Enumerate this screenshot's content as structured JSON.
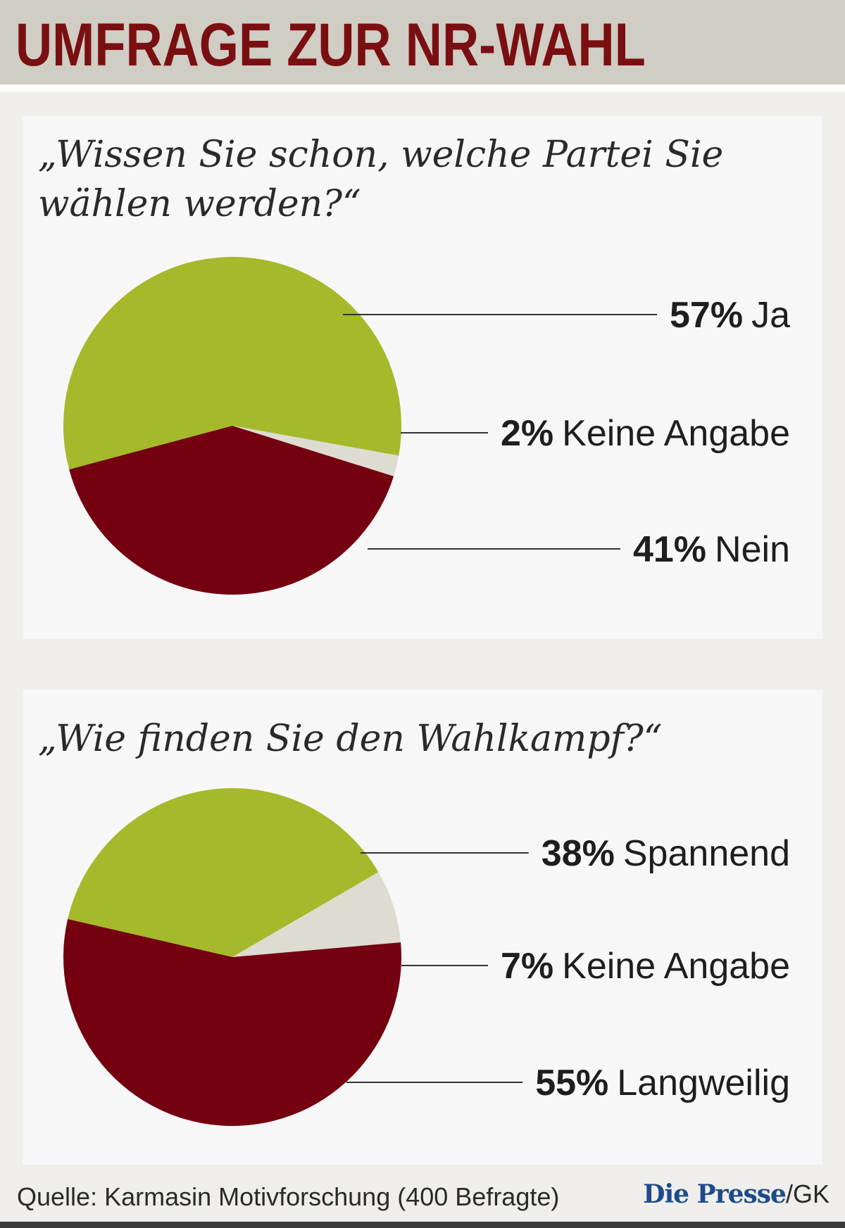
{
  "header": {
    "title": "UMFRAGE ZUR NR-WAHL"
  },
  "colors": {
    "green": "#a5b92b",
    "red": "#740010",
    "beige": "#dedcd1",
    "leader": "#333333"
  },
  "chart_data": [
    {
      "type": "pie",
      "title": "„Wissen Sie schon, welche Partei Sie wählen werden?“",
      "title_lines": [
        "„Wissen Sie schon, welche Partei Sie",
        "wählen werden?“"
      ],
      "unit": "%",
      "slices": [
        {
          "label": "Ja",
          "value": 57,
          "pct_text": "57%",
          "color": "green"
        },
        {
          "label": "Keine Angabe",
          "value": 2,
          "pct_text": "2%",
          "color": "beige"
        },
        {
          "label": "Nein",
          "value": 41,
          "pct_text": "41%",
          "color": "red"
        }
      ]
    },
    {
      "type": "pie",
      "title": "„Wie finden Sie den Wahlkampf?“",
      "title_lines": [
        "„Wie finden Sie den Wahlkampf?“"
      ],
      "unit": "%",
      "slices": [
        {
          "label": "Spannend",
          "value": 38,
          "pct_text": "38%",
          "color": "green"
        },
        {
          "label": "Keine Angabe",
          "value": 7,
          "pct_text": "7%",
          "color": "beige"
        },
        {
          "label": "Langweilig",
          "value": 55,
          "pct_text": "55%",
          "color": "red"
        }
      ]
    }
  ],
  "footer": {
    "source": "Quelle: Karmasin Motivforschung (400 Befragte)",
    "brand": "Die Presse",
    "separator": "/",
    "credit": "GK"
  }
}
